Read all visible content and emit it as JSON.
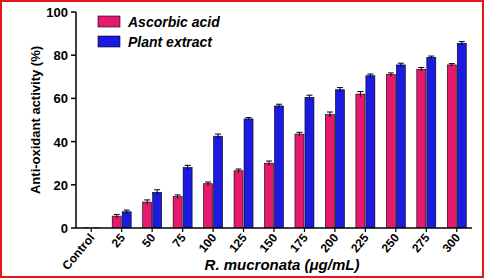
{
  "chart_data": {
    "type": "bar",
    "x_label": "R. mucronata (μg/mL)",
    "y_label": "Anti-oxidant activity (%)",
    "categories": [
      "Control",
      "25",
      "50",
      "75",
      "100",
      "125",
      "150",
      "175",
      "200",
      "225",
      "250",
      "275",
      "300"
    ],
    "series": [
      {
        "name": "Ascorbic acid",
        "color": "#e6196e",
        "values": [
          0,
          5.5,
          12,
          14.5,
          20.5,
          26.5,
          30,
          43.5,
          52.5,
          62,
          71,
          73.5,
          75.5
        ],
        "errors": [
          0,
          0.8,
          1,
          0.8,
          0.8,
          0.8,
          1,
          0.8,
          1.2,
          1.2,
          0.8,
          0.8,
          0.6
        ]
      },
      {
        "name": "Plant extract",
        "color": "#1a1ae0",
        "values": [
          0,
          7.5,
          16.5,
          28,
          42.5,
          50.5,
          56.5,
          60.5,
          64,
          70.5,
          75.5,
          79,
          85.5
        ],
        "errors": [
          0,
          0.8,
          1.2,
          1,
          1,
          0.6,
          0.8,
          1,
          1,
          0.8,
          0.8,
          0.6,
          0.8
        ]
      }
    ],
    "ylim": [
      0,
      100
    ],
    "yticks": [
      0,
      20,
      40,
      60,
      80,
      100
    ],
    "grid": false,
    "legend": "top-left"
  }
}
